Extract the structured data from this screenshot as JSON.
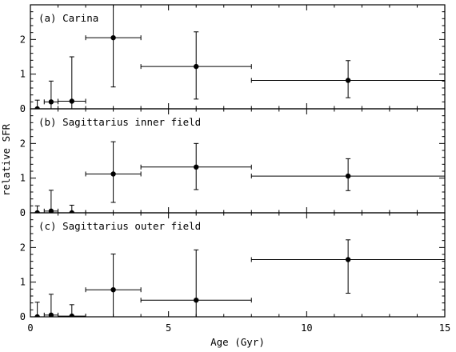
{
  "chart_data": {
    "type": "scatter",
    "xlabel": "Age (Gyr)",
    "ylabel": "relative SFR",
    "xlim": [
      0,
      15
    ],
    "xticks": [
      0,
      5,
      10,
      15
    ],
    "grid": false,
    "panels": [
      {
        "title": "(a) Carina",
        "ylim": [
          0,
          3
        ],
        "yticks": [
          0,
          1,
          2
        ],
        "points": [
          {
            "x": 0.25,
            "y": 0.0,
            "xerr": [
              0.0,
              0.0
            ],
            "yerr": [
              0.0,
              0.25
            ]
          },
          {
            "x": 0.75,
            "y": 0.2,
            "xerr": [
              0.25,
              0.25
            ],
            "yerr": [
              0.2,
              0.6
            ]
          },
          {
            "x": 1.5,
            "y": 0.22,
            "xerr": [
              0.5,
              0.5
            ],
            "yerr": [
              0.22,
              1.28
            ]
          },
          {
            "x": 3.0,
            "y": 2.05,
            "xerr": [
              1.0,
              1.0
            ],
            "yerr": [
              1.42,
              0.95
            ]
          },
          {
            "x": 6.0,
            "y": 1.22,
            "xerr": [
              2.0,
              2.0
            ],
            "yerr": [
              0.94,
              1.0
            ]
          },
          {
            "x": 11.5,
            "y": 0.82,
            "xerr": [
              3.5,
              3.5
            ],
            "yerr": [
              0.5,
              0.57
            ]
          }
        ]
      },
      {
        "title": "(b) Sagittarius inner field",
        "ylim": [
          0,
          3
        ],
        "yticks": [
          0,
          1,
          2
        ],
        "points": [
          {
            "x": 0.25,
            "y": 0.0,
            "xerr": [
              0.0,
              0.0
            ],
            "yerr": [
              0.0,
              0.2
            ]
          },
          {
            "x": 0.75,
            "y": 0.05,
            "xerr": [
              0.25,
              0.25
            ],
            "yerr": [
              0.05,
              0.6
            ]
          },
          {
            "x": 1.5,
            "y": 0.0,
            "xerr": [
              0.5,
              0.5
            ],
            "yerr": [
              0.0,
              0.22
            ]
          },
          {
            "x": 3.0,
            "y": 1.12,
            "xerr": [
              1.0,
              1.0
            ],
            "yerr": [
              0.82,
              0.93
            ]
          },
          {
            "x": 6.0,
            "y": 1.32,
            "xerr": [
              2.0,
              2.0
            ],
            "yerr": [
              0.65,
              0.68
            ]
          },
          {
            "x": 11.5,
            "y": 1.06,
            "xerr": [
              3.5,
              3.5
            ],
            "yerr": [
              0.42,
              0.5
            ]
          }
        ]
      },
      {
        "title": "(c) Sagittarius outer field",
        "ylim": [
          0,
          3
        ],
        "yticks": [
          0,
          1,
          2
        ],
        "points": [
          {
            "x": 0.25,
            "y": 0.0,
            "xerr": [
              0.0,
              0.0
            ],
            "yerr": [
              0.0,
              0.42
            ]
          },
          {
            "x": 0.75,
            "y": 0.05,
            "xerr": [
              0.25,
              0.25
            ],
            "yerr": [
              0.05,
              0.6
            ]
          },
          {
            "x": 1.5,
            "y": 0.02,
            "xerr": [
              0.5,
              0.5
            ],
            "yerr": [
              0.02,
              0.33
            ]
          },
          {
            "x": 3.0,
            "y": 0.78,
            "xerr": [
              1.0,
              1.0
            ],
            "yerr": [
              0.78,
              1.03
            ]
          },
          {
            "x": 6.0,
            "y": 0.48,
            "xerr": [
              2.0,
              2.0
            ],
            "yerr": [
              0.48,
              1.45
            ]
          },
          {
            "x": 11.5,
            "y": 1.65,
            "xerr": [
              3.5,
              3.5
            ],
            "yerr": [
              0.97,
              0.57
            ]
          }
        ]
      }
    ]
  }
}
